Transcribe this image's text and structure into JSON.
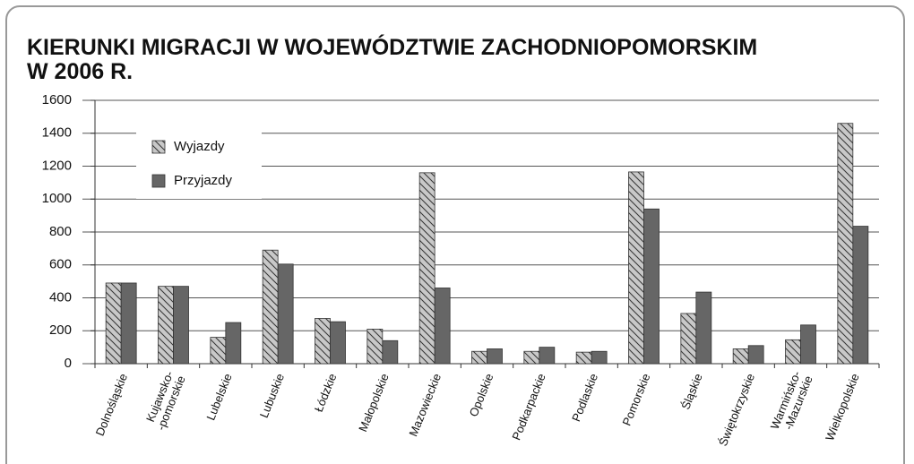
{
  "chart_data": {
    "type": "bar",
    "title": "KIERUNKI MIGRACJI W WOJEWÓDZTWIE ZACHODNIOPOMORSKIM\nW 2006 R.",
    "categories": [
      "Dolnośląskie",
      "Kujawsko-\n-pomorskie",
      "Lubelskie",
      "Lubuskie",
      "Łódzkie",
      "Małopolskie",
      "Mazowieckie",
      "Opolskie",
      "Podkarpackie",
      "Podlaskie",
      "Pomorskie",
      "Śląskie",
      "Świętokrzyskie",
      "Warmińsko-\n-Mazurskie",
      "Wielkopolskie"
    ],
    "series": [
      {
        "name": "Wyjazdy",
        "color": "#c8c8c8",
        "pattern": "hatch",
        "values": [
          490,
          470,
          160,
          690,
          275,
          210,
          1160,
          75,
          75,
          70,
          1165,
          305,
          90,
          145,
          1460
        ]
      },
      {
        "name": "Przyjazdy",
        "color": "#666666",
        "values": [
          490,
          470,
          250,
          605,
          255,
          140,
          460,
          90,
          100,
          75,
          940,
          435,
          110,
          235,
          835
        ]
      }
    ],
    "ylim": [
      0,
      1600
    ],
    "yticks": [
      0,
      200,
      400,
      600,
      800,
      1000,
      1200,
      1400,
      1600
    ],
    "grid": true,
    "legend": "top-left"
  }
}
